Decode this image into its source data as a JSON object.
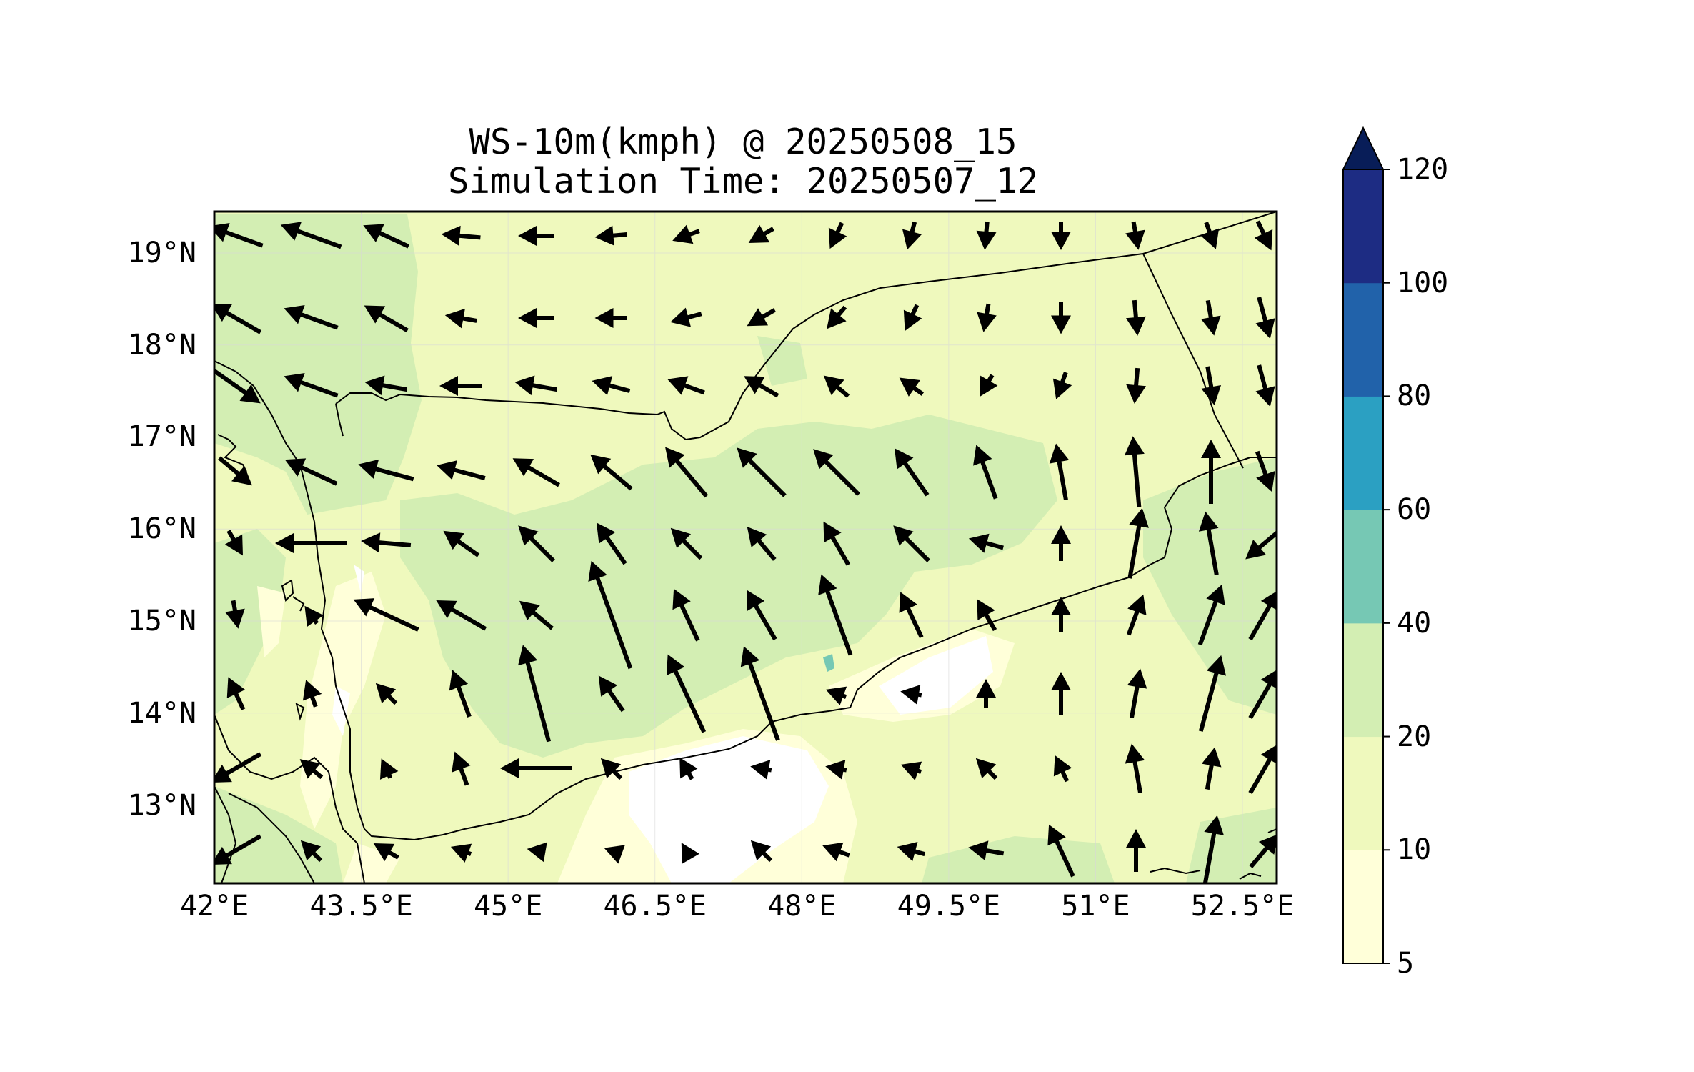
{
  "title": {
    "line1": "WS-10m(kmph) @ 20250508_15",
    "line2": "Simulation Time: 20250507_12"
  },
  "map": {
    "lon_range": [
      42.0,
      52.85
    ],
    "lat_range": [
      12.15,
      19.45
    ],
    "lon_ticks": [
      "42°E",
      "43.5°E",
      "45°E",
      "46.5°E",
      "48°E",
      "49.5°E",
      "51°E",
      "52.5°E"
    ],
    "lon_tick_values": [
      42.0,
      43.5,
      45.0,
      46.5,
      48.0,
      49.5,
      51.0,
      52.5
    ],
    "lat_ticks": [
      "19°N",
      "18°N",
      "17°N",
      "16°N",
      "15°N",
      "14°N",
      "13°N"
    ],
    "lat_tick_values": [
      19,
      18,
      17,
      16,
      15,
      14,
      13
    ],
    "gridlines": true
  },
  "colorbar": {
    "levels": [
      "5",
      "10",
      "20",
      "40",
      "60",
      "80",
      "100",
      "120"
    ],
    "colors": [
      "#ffffd9",
      "#eff9bd",
      "#d3eeb3",
      "#76c8b4",
      "#2ba0c2",
      "#2162aa",
      "#1d2c83"
    ],
    "extend_color": "#081d58",
    "extend": "max"
  },
  "colors": {
    "land_base": "#eff9bd",
    "calm": "#ffffff",
    "light": "#ffffd9",
    "moderate": "#d3eeb3",
    "strong": "#76c8b4"
  }
}
